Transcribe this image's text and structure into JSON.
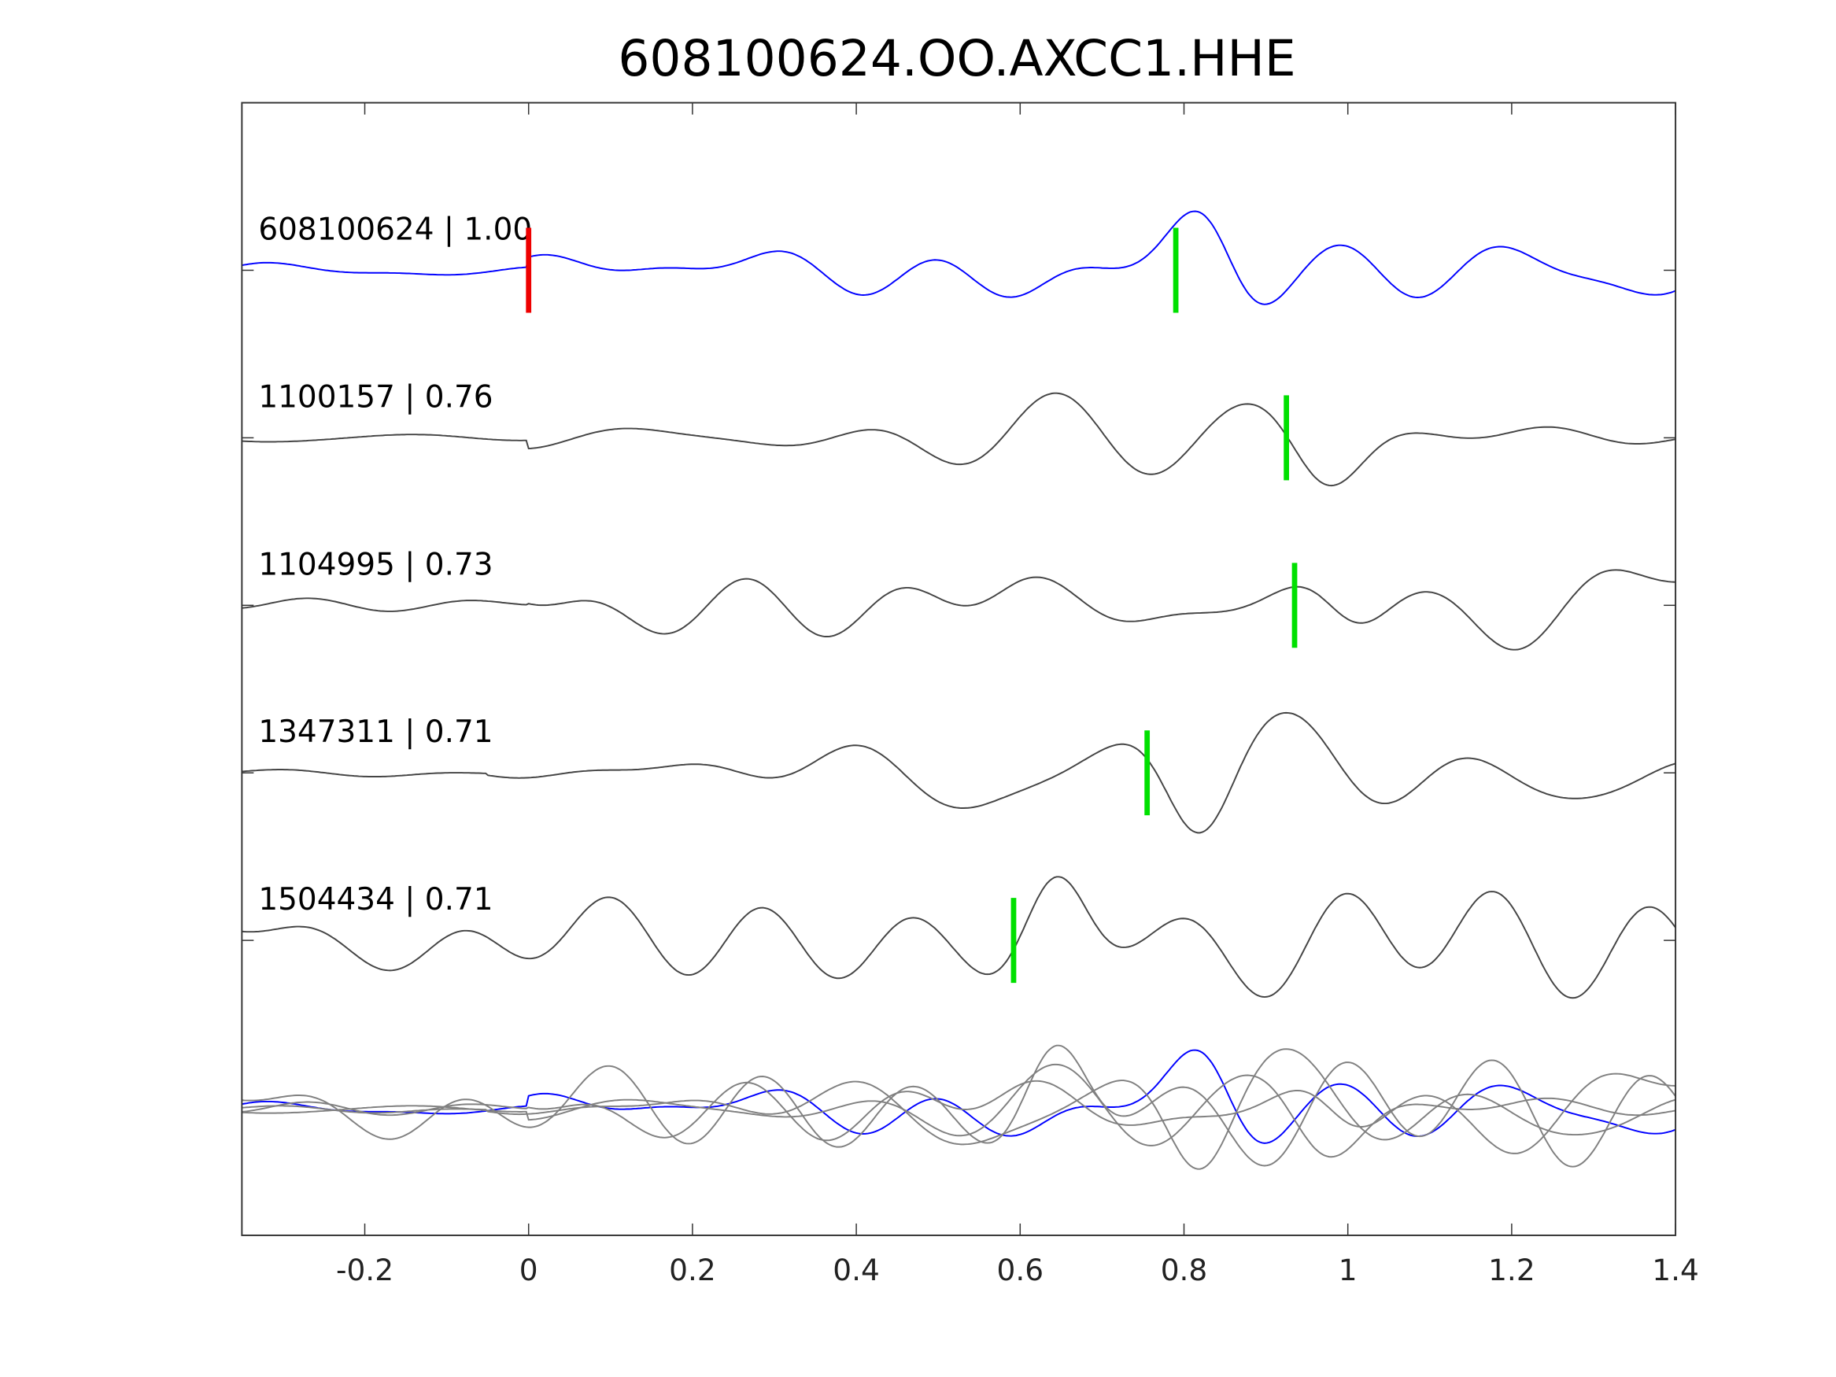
{
  "chart_data": {
    "type": "line",
    "title": "608100624.OO.AXCC1.HHE",
    "xlabel": "",
    "ylabel": "",
    "xlim": [
      -0.35,
      1.4
    ],
    "xticks": [
      -0.2,
      0,
      0.2,
      0.4,
      0.6,
      0.8,
      1,
      1.2,
      1.4
    ],
    "xtick_labels": [
      "-0.2",
      "0",
      "0.2",
      "0.4",
      "0.6",
      "0.8",
      "1",
      "1.2",
      "1.4"
    ],
    "grid": false,
    "reference_pick": {
      "x": 0,
      "color": "#ee0000"
    },
    "traces": [
      {
        "label": "608100624 | 1.00",
        "id": "608100624",
        "cc": 1.0,
        "color": "#0000ff",
        "pick": 0.79,
        "onset": 0.0,
        "seed": 1
      },
      {
        "label": "1100157 | 0.76",
        "id": "1100157",
        "cc": 0.76,
        "color": "#444444",
        "pick": 0.925,
        "onset": 0.0,
        "seed": 2
      },
      {
        "label": "1104995 | 0.73",
        "id": "1104995",
        "cc": 0.73,
        "color": "#444444",
        "pick": 0.935,
        "onset": 0.0,
        "seed": 3
      },
      {
        "label": "1347311 | 0.71",
        "id": "1347311",
        "cc": 0.71,
        "color": "#444444",
        "pick": 0.755,
        "onset": -0.05,
        "seed": 4
      },
      {
        "label": "1504434 | 0.71",
        "id": "1504434",
        "cc": 0.71,
        "color": "#444444",
        "pick": 0.592,
        "onset": -0.35,
        "seed": 5
      }
    ],
    "pick_color": "#00e000",
    "stack_color": "#808080"
  }
}
